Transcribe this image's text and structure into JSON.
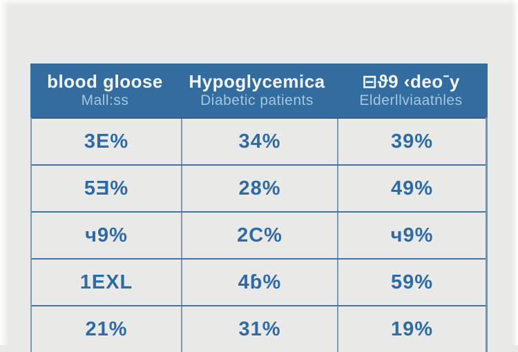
{
  "page": {
    "background_color": "#e9e9e7"
  },
  "table": {
    "colors": {
      "header_bg": "#336c9e",
      "header_title": "#f4f7fa",
      "header_subtitle": "#a3c6e1",
      "cell_text": "#2e6ba6",
      "row_border": "#45719c",
      "column_border": "#7a99b6"
    },
    "header": {
      "columns": [
        {
          "title": "blood gloose",
          "subtitle": "Mall:ss"
        },
        {
          "title": "Hypoglycemica",
          "subtitle": "Diabetic patients"
        },
        {
          "title": "⊟ϑ9 ‹deoˉy",
          "subtitle": "Elderllviaatṅles"
        }
      ]
    },
    "rows": [
      [
        "3E%",
        "34%",
        "39%"
      ],
      [
        "5Ǝ%",
        "28%",
        "49%"
      ],
      [
        "ч9%",
        "2C%",
        "ч9%"
      ],
      [
        "1EXL",
        "4ɓ%",
        "59%"
      ],
      [
        "21%",
        "31%",
        "19%"
      ]
    ]
  },
  "chart_data": {
    "type": "table",
    "title": "",
    "columns": [
      {
        "title": "blood gloose",
        "subtitle": "Mall:ss"
      },
      {
        "title": "Hypoglycemica",
        "subtitle": "Diabetic patients"
      },
      {
        "title": "⊟ϑ9 ‹deoˉy",
        "subtitle": "Elderllviaatṅles"
      }
    ],
    "rows": [
      [
        "3E%",
        "34%",
        "39%"
      ],
      [
        "5Ǝ%",
        "28%",
        "49%"
      ],
      [
        "ч9%",
        "2C%",
        "ч9%"
      ],
      [
        "1EXL",
        "4ɓ%",
        "59%"
      ],
      [
        "21%",
        "31%",
        "19%"
      ]
    ],
    "layout": {
      "header_background": "#336c9e",
      "grid": "on",
      "last_row_clipped_at_bottom": true
    }
  }
}
